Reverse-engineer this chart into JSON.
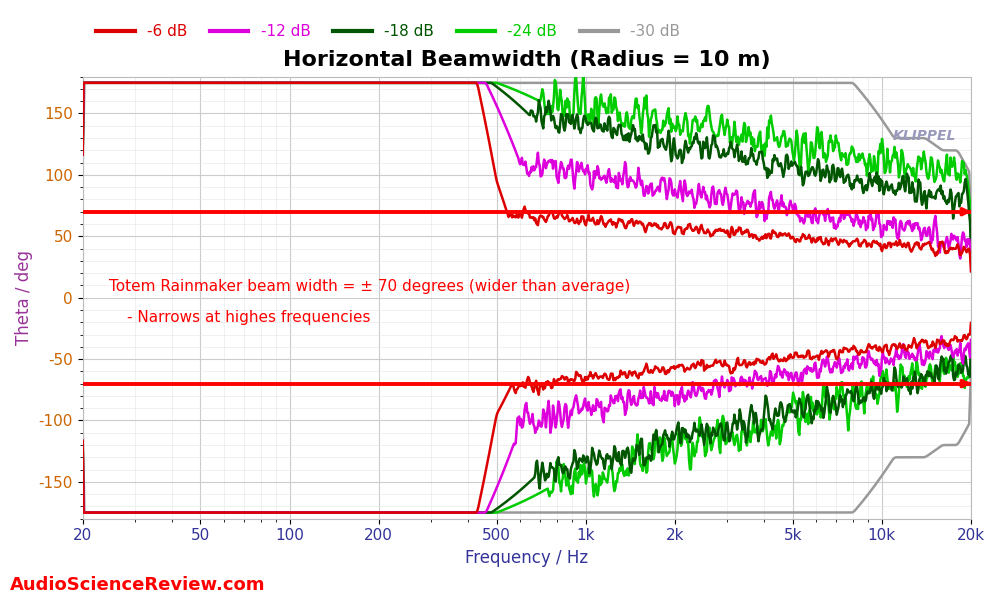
{
  "title": "Horizontal Beamwidth (Radius = 10 m)",
  "xlabel": "Frequency / Hz",
  "ylabel": "Theta / deg",
  "ylim": [
    -180,
    180
  ],
  "xlim": [
    20,
    20000
  ],
  "yticks": [
    -150,
    -100,
    -50,
    0,
    50,
    100,
    150
  ],
  "xticks": [
    20,
    50,
    100,
    200,
    500,
    1000,
    2000,
    5000,
    10000,
    20000
  ],
  "xtick_labels": [
    "20",
    "50",
    "100",
    "200",
    "500",
    "1k",
    "2k",
    "5k",
    "10k",
    "20k"
  ],
  "hline_pos": 70,
  "hline_neg": -70,
  "series_colors": [
    "#dd0000",
    "#dd00dd",
    "#005500",
    "#00cc00",
    "#999999"
  ],
  "series_labels": [
    "-6 dB",
    "-12 dB",
    "-18 dB",
    "-24 dB",
    "-30 dB"
  ],
  "annotation1": "Totem Rainmaker beam width = ± 70 degrees (wider than average)",
  "annotation2": "- Narrows at highes frequencies",
  "watermark": "AudioScienceReview.com",
  "background_color": "#ffffff",
  "grid_color": "#cccccc",
  "title_fontsize": 16,
  "label_fontsize": 12,
  "tick_fontsize": 11
}
